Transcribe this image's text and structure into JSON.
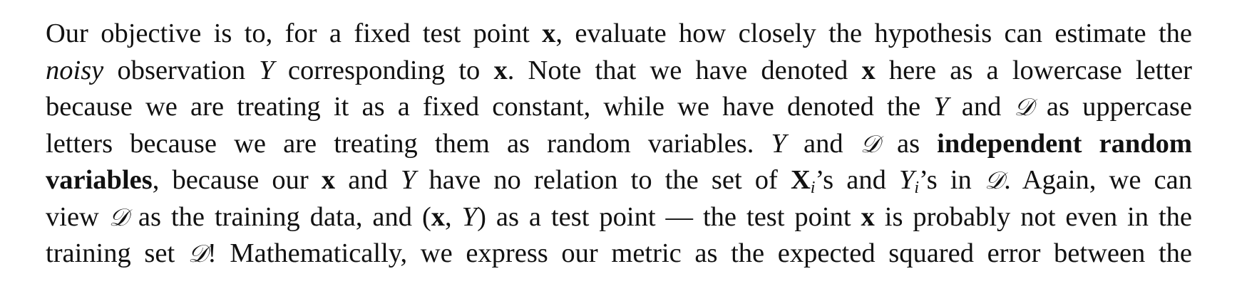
{
  "paragraph": {
    "lines": [
      [
        {
          "t": "Our objective is to, for a fixed test point ",
          "s": "n"
        },
        {
          "t": "x",
          "s": "b"
        },
        {
          "t": ", evaluate how closely the hypothesis can estimate the",
          "s": "n"
        }
      ],
      [
        {
          "t": "noisy",
          "s": "i"
        },
        {
          "t": " observation ",
          "s": "n"
        },
        {
          "t": "Y",
          "s": "i"
        },
        {
          "t": " corresponding to ",
          "s": "n"
        },
        {
          "t": "x",
          "s": "b"
        },
        {
          "t": ".  Note that we have denoted ",
          "s": "n"
        },
        {
          "t": "x",
          "s": "b"
        },
        {
          "t": " here as a lowercase letter",
          "s": "n"
        }
      ],
      [
        {
          "t": "because we are treating it as a fixed constant, while we have denoted the ",
          "s": "n"
        },
        {
          "t": "Y",
          "s": "i"
        },
        {
          "t": " and ",
          "s": "n"
        },
        {
          "t": "𝒟",
          "s": "cal"
        },
        {
          "t": " as uppercase",
          "s": "n"
        }
      ],
      [
        {
          "t": "letters because we are treating them as random variables.  ",
          "s": "n"
        },
        {
          "t": "Y",
          "s": "i"
        },
        {
          "t": " and ",
          "s": "n"
        },
        {
          "t": "𝒟",
          "s": "cal"
        },
        {
          "t": " as ",
          "s": "n"
        },
        {
          "t": "independent random",
          "s": "b"
        }
      ],
      [
        {
          "t": "variables",
          "s": "b"
        },
        {
          "t": ", because our ",
          "s": "n"
        },
        {
          "t": "x",
          "s": "b"
        },
        {
          "t": " and ",
          "s": "n"
        },
        {
          "t": "Y",
          "s": "i"
        },
        {
          "t": " have no relation to the set of ",
          "s": "n"
        },
        {
          "t": "X",
          "s": "b",
          "sub": "i"
        },
        {
          "t": "’s and ",
          "s": "n"
        },
        {
          "t": "Y",
          "s": "i",
          "sub": "i"
        },
        {
          "t": "’s in ",
          "s": "n"
        },
        {
          "t": "𝒟",
          "s": "cal"
        },
        {
          "t": ".  Again, we can",
          "s": "n"
        }
      ],
      [
        {
          "t": "view ",
          "s": "n"
        },
        {
          "t": "𝒟",
          "s": "cal"
        },
        {
          "t": " as the training data, and (",
          "s": "n"
        },
        {
          "t": "x",
          "s": "b"
        },
        {
          "t": ", ",
          "s": "n"
        },
        {
          "t": "Y",
          "s": "i"
        },
        {
          "t": ") as a test point — the test point ",
          "s": "n"
        },
        {
          "t": "x",
          "s": "b"
        },
        {
          "t": " is probably not even in the",
          "s": "n"
        }
      ],
      [
        {
          "t": "training set ",
          "s": "n"
        },
        {
          "t": "𝒟",
          "s": "cal"
        },
        {
          "t": "!  Mathematically, we express our metric as the expected squared error between the",
          "s": "n"
        }
      ]
    ]
  }
}
